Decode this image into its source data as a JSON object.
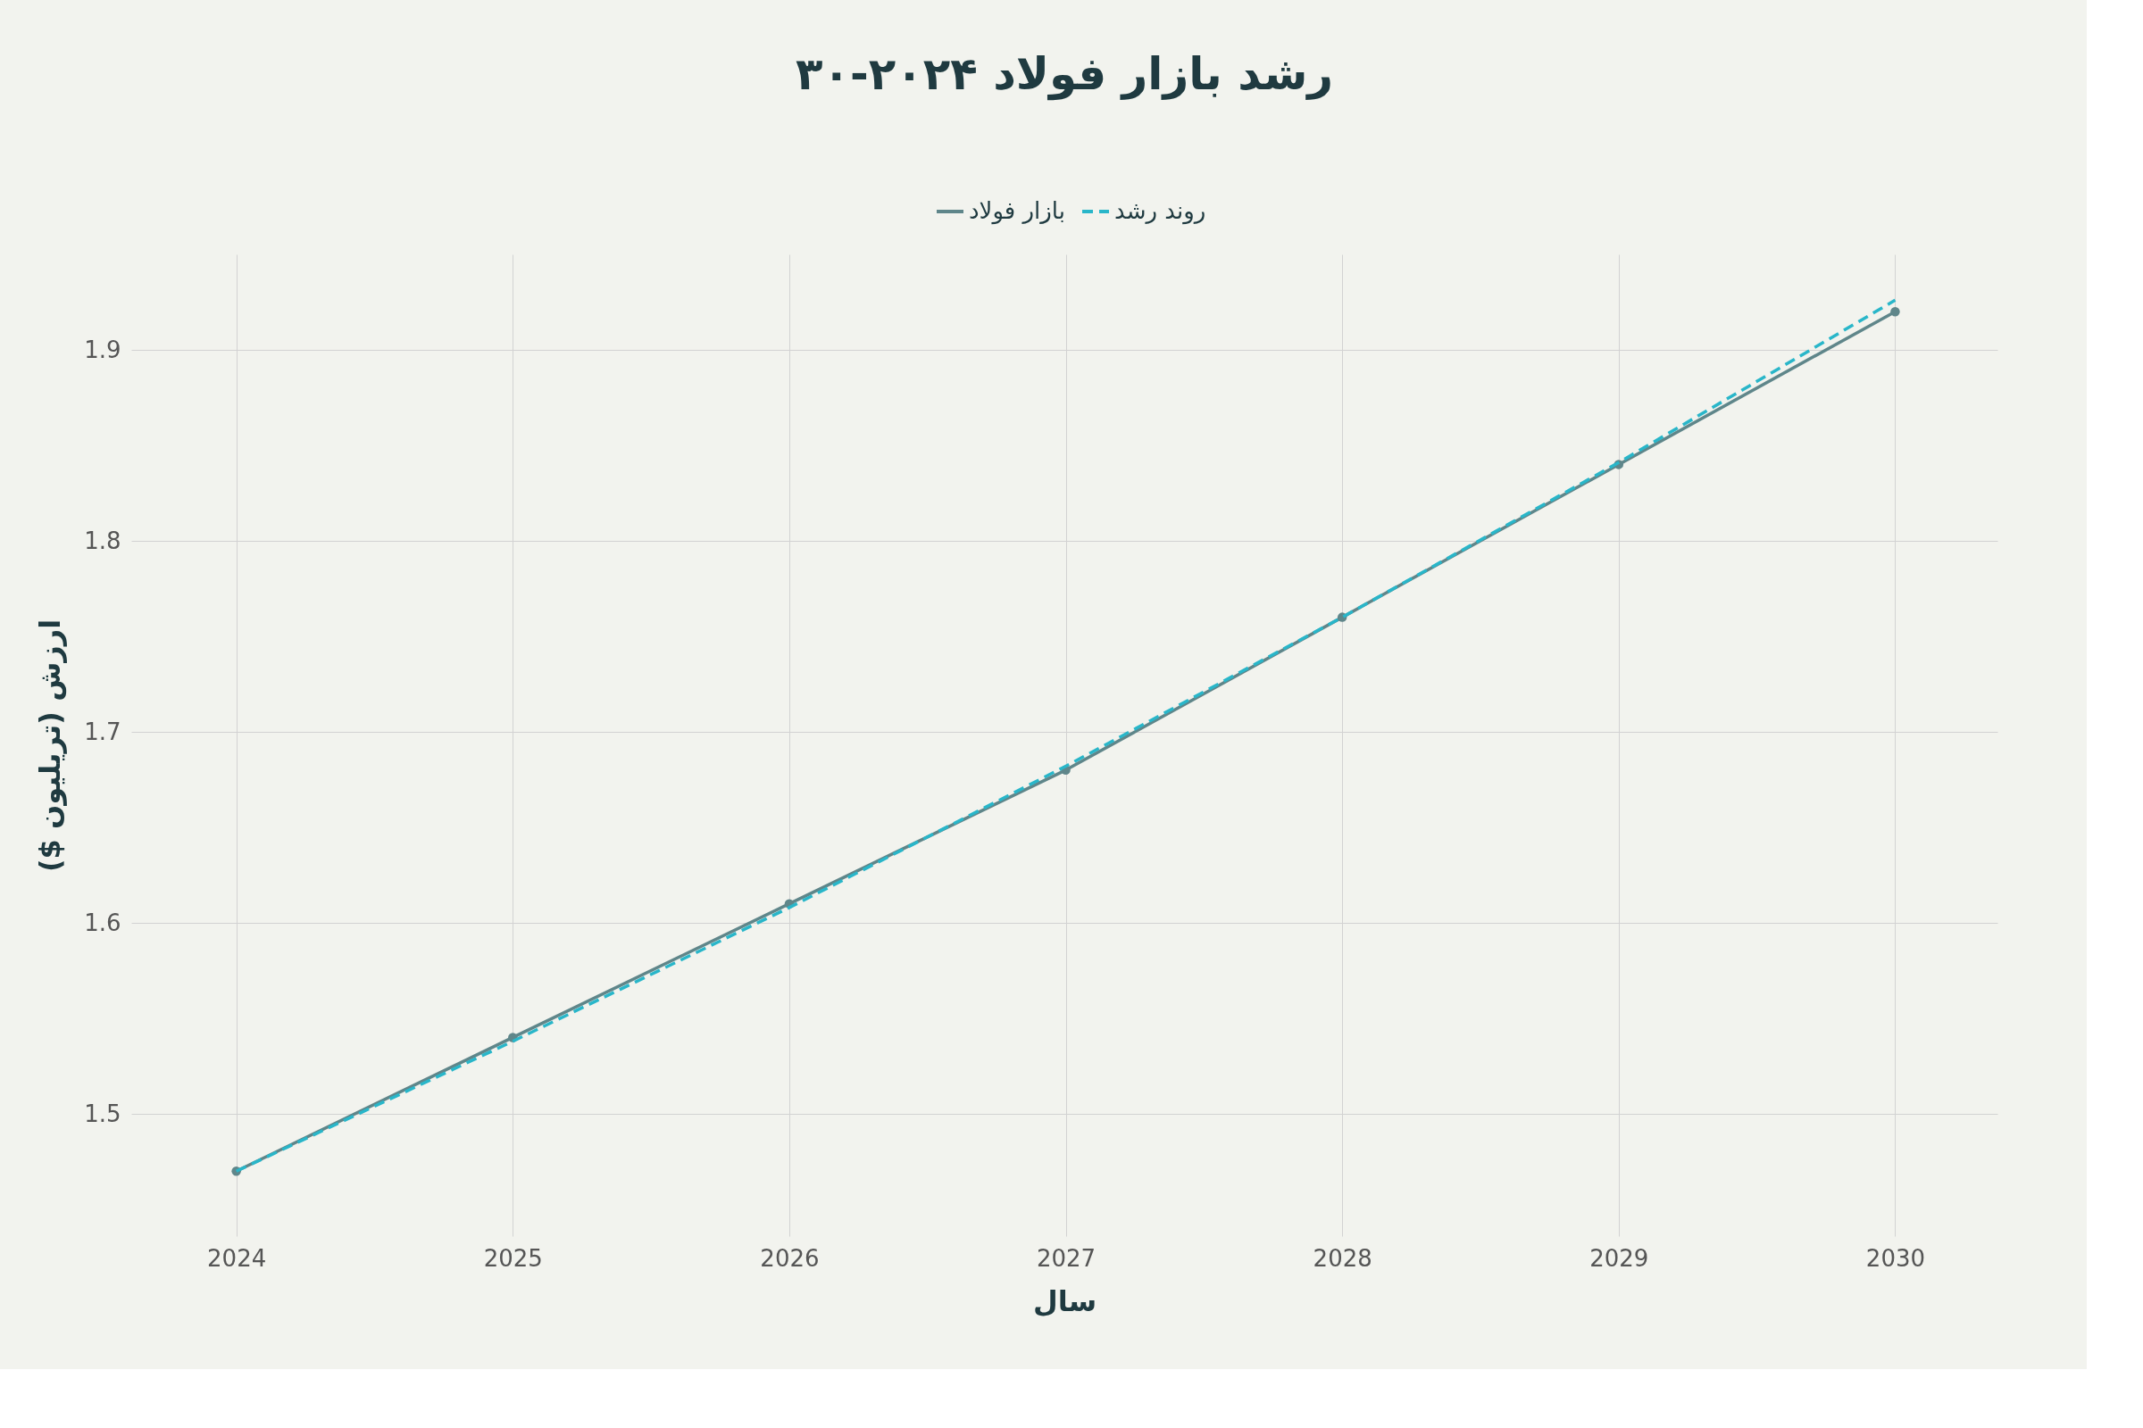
{
  "chart_data": {
    "type": "line",
    "title": "رشد بازار فولاد ۲۰۲۴-۳۰",
    "xlabel": "سال",
    "ylabel": "ارزش (تریلیون $)",
    "x": [
      2024,
      2025,
      2026,
      2027,
      2028,
      2029,
      2030
    ],
    "series": [
      {
        "name": "بازار فولاد",
        "color": "#5f868a",
        "values": [
          1.47,
          1.54,
          1.61,
          1.68,
          1.76,
          1.84,
          1.92
        ],
        "marker": "circle",
        "line_style": "solid"
      },
      {
        "name": "روند رشد",
        "color": "#29b6c9",
        "values": [
          1.47,
          1.538,
          1.608,
          1.682,
          1.76,
          1.841,
          1.926
        ],
        "marker": "none",
        "line_style": "dashed"
      }
    ],
    "xlim": [
      2023.62,
      2030.37
    ],
    "ylim": [
      1.436,
      1.95
    ],
    "xticks": [
      2024,
      2025,
      2026,
      2027,
      2028,
      2029,
      2030
    ],
    "yticks": [
      1.5,
      1.6,
      1.7,
      1.8,
      1.9
    ],
    "grid": true,
    "legend": "top"
  }
}
